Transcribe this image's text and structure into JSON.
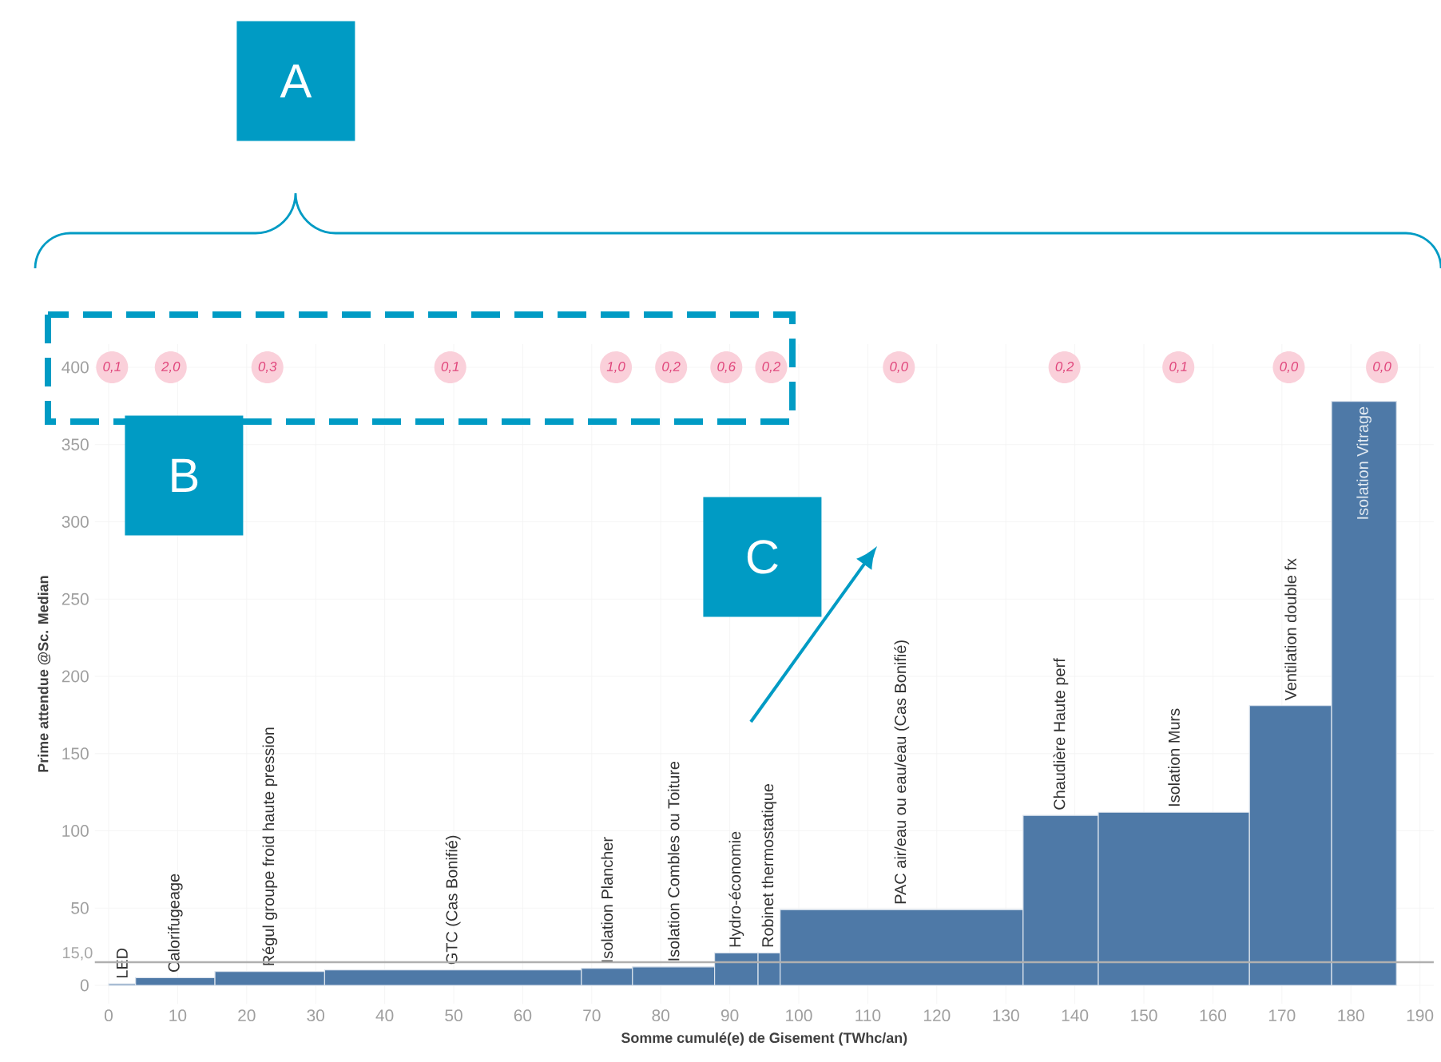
{
  "chart_data": {
    "type": "histogram",
    "xlabel": "Somme cumulé(e) de Gisement (TWhc/an)",
    "ylabel": "Prime attendue @Sc. Median",
    "bins": [
      0,
      3.9,
      15.4,
      31.3,
      68.5,
      75.9,
      87.8,
      94.1,
      97.3,
      132.5,
      143.4,
      165.3,
      177.2,
      186.6
    ],
    "values": [
      1,
      5,
      9,
      10,
      11,
      12,
      21,
      21,
      49,
      110,
      112,
      181,
      378
    ],
    "categories": [
      "LED",
      "Calorifugeage",
      "Régul groupe froid haute pression",
      "GTC (Cas Bonifié)",
      "Isolation Plancher",
      "Isolation Combles ou Toiture",
      "Hydro-économie",
      "Robinet thermostatique",
      "PAC air/eau ou eau/eau (Cas Bonifié)",
      "Chaudière Haute perf",
      "Isolation Murs",
      "Ventilation double fx",
      "Isolation Vitrage"
    ],
    "color": "#4e79a7",
    "xlim": [
      -2,
      192
    ],
    "ylim": [
      -12,
      415
    ],
    "xticks": [
      0,
      10,
      20,
      30,
      40,
      50,
      60,
      70,
      80,
      90,
      100,
      110,
      120,
      130,
      140,
      150,
      160,
      170,
      180,
      190
    ],
    "yticks": [
      0,
      50,
      100,
      150,
      200,
      250,
      300,
      350,
      400
    ],
    "grid": true,
    "ref_lines": [
      {
        "axis": "y",
        "value": 15,
        "label": "15,0",
        "color": "#b0b0b0"
      }
    ],
    "annotations": [
      {
        "text": "0,1",
        "x": 0.5,
        "y": 400
      },
      {
        "text": "2,0",
        "x": 9,
        "y": 400
      },
      {
        "text": "0,3",
        "x": 23,
        "y": 400
      },
      {
        "text": "0,1",
        "x": 49.5,
        "y": 400
      },
      {
        "text": "1,0",
        "x": 73.5,
        "y": 400
      },
      {
        "text": "0,2",
        "x": 81.5,
        "y": 400
      },
      {
        "text": "0,6",
        "x": 89.5,
        "y": 400
      },
      {
        "text": "0,2",
        "x": 96,
        "y": 400
      },
      {
        "text": "0,0",
        "x": 114.5,
        "y": 400
      },
      {
        "text": "0,2",
        "x": 138.5,
        "y": 400
      },
      {
        "text": "0,1",
        "x": 155,
        "y": 400
      },
      {
        "text": "0,0",
        "x": 171,
        "y": 400
      },
      {
        "text": "0,0",
        "x": 184.5,
        "y": 400
      },
      "A",
      "B",
      "C"
    ]
  }
}
